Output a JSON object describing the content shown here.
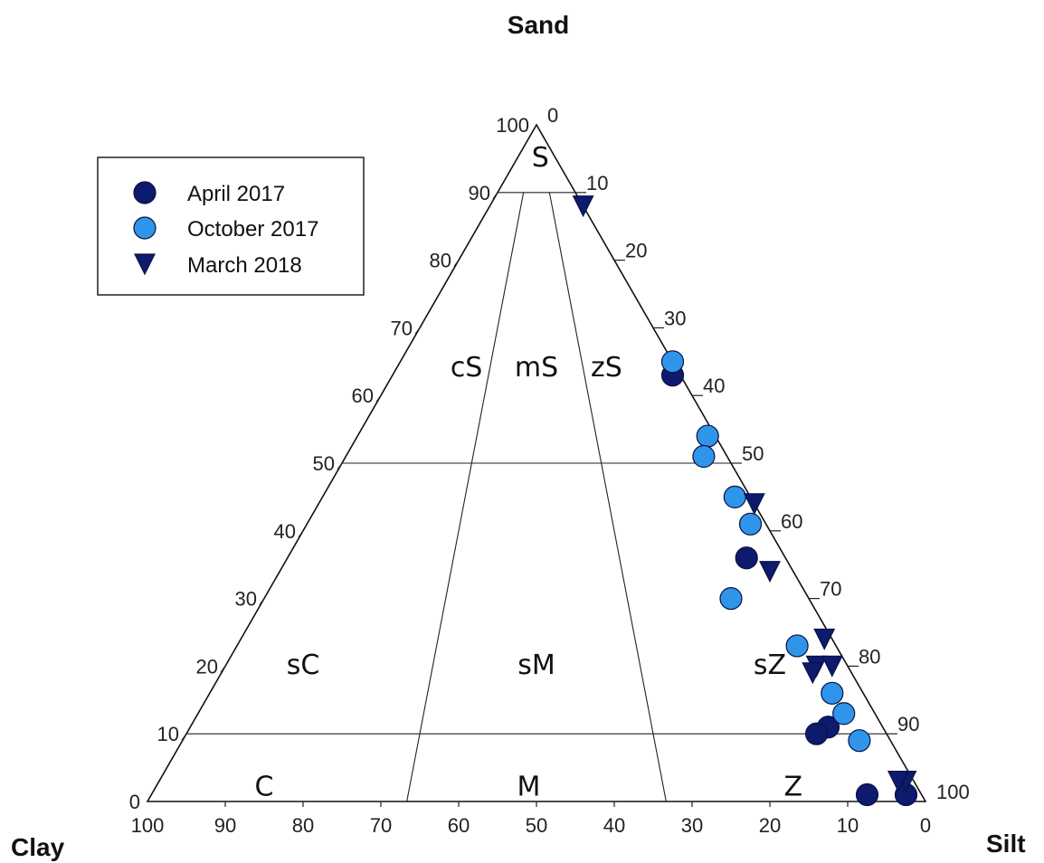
{
  "chart_data": {
    "type": "scatter",
    "subtype": "ternary",
    "axes": {
      "top": "Sand",
      "left": "Clay",
      "right": "Silt",
      "range": [
        0,
        100
      ],
      "ticks": [
        0,
        10,
        20,
        30,
        40,
        50,
        60,
        70,
        80,
        90,
        100
      ]
    },
    "region_labels": [
      "S",
      "cS",
      "mS",
      "zS",
      "sC",
      "sM",
      "sZ",
      "C",
      "M",
      "Z"
    ],
    "legend": {
      "placement": "top-left"
    },
    "series": [
      {
        "name": "April 2017",
        "marker": "circle",
        "color": "#0d1a6e",
        "points": [
          {
            "sand": 63,
            "silt": 36,
            "clay": 1
          },
          {
            "sand": 36,
            "silt": 59,
            "clay": 5
          },
          {
            "sand": 11,
            "silt": 82,
            "clay": 7
          },
          {
            "sand": 10,
            "silt": 81,
            "clay": 9
          },
          {
            "sand": 1,
            "silt": 92,
            "clay": 7
          },
          {
            "sand": 1,
            "silt": 97,
            "clay": 2
          }
        ]
      },
      {
        "name": "October 2017",
        "marker": "circle",
        "color": "#2e95ea",
        "points": [
          {
            "sand": 65,
            "silt": 35,
            "clay": 0
          },
          {
            "sand": 54,
            "silt": 45,
            "clay": 1
          },
          {
            "sand": 51,
            "silt": 46,
            "clay": 3
          },
          {
            "sand": 45,
            "silt": 53,
            "clay": 2
          },
          {
            "sand": 41,
            "silt": 57,
            "clay": 2
          },
          {
            "sand": 30,
            "silt": 60,
            "clay": 10
          },
          {
            "sand": 23,
            "silt": 72,
            "clay": 5
          },
          {
            "sand": 16,
            "silt": 80,
            "clay": 4
          },
          {
            "sand": 13,
            "silt": 83,
            "clay": 4
          },
          {
            "sand": 9,
            "silt": 87,
            "clay": 4
          }
        ]
      },
      {
        "name": "March 2018",
        "marker": "triangle-down",
        "color": "#0d1a6e",
        "points": [
          {
            "sand": 88,
            "silt": 12,
            "clay": 0
          },
          {
            "sand": 44,
            "silt": 56,
            "clay": 0
          },
          {
            "sand": 34,
            "silt": 63,
            "clay": 3
          },
          {
            "sand": 24,
            "silt": 75,
            "clay": 1
          },
          {
            "sand": 20,
            "silt": 76,
            "clay": 4
          },
          {
            "sand": 20,
            "silt": 78,
            "clay": 2
          },
          {
            "sand": 19,
            "silt": 76,
            "clay": 5
          },
          {
            "sand": 3,
            "silt": 96,
            "clay": 1
          },
          {
            "sand": 3,
            "silt": 95,
            "clay": 2
          }
        ]
      }
    ]
  }
}
